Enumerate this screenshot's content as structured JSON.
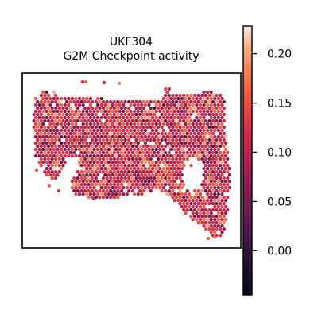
{
  "chart_data": {
    "type": "scatter",
    "title": "UKF304",
    "subtitle": "G2M Checkpoint activity",
    "xlabel": "",
    "ylabel": "",
    "colormap": "rocket",
    "colorbar": {
      "range": [
        -0.045,
        0.228
      ],
      "ticks": [
        0.0,
        0.05,
        0.1,
        0.15,
        0.2
      ],
      "tick_labels": [
        "0.00",
        "0.05",
        "0.10",
        "0.15",
        "0.20"
      ]
    },
    "value_summary": {
      "typical_range": [
        0.06,
        0.17
      ],
      "mean": 0.115
    },
    "grid": false,
    "legend": "colorbar-right"
  }
}
